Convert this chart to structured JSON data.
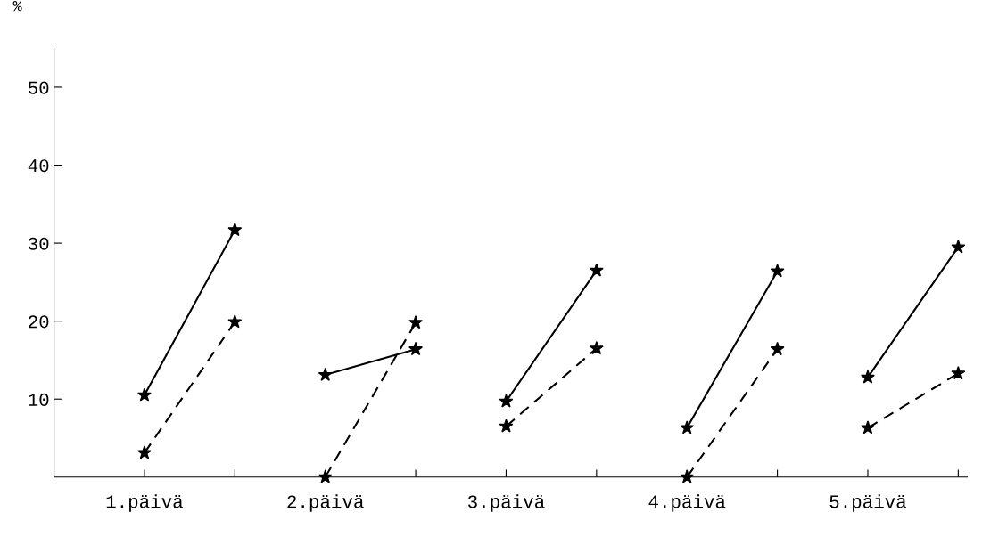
{
  "chart_data": {
    "type": "line",
    "ylabel": "%",
    "categories": [
      "1.päivä",
      null,
      "2.päivä",
      null,
      "3.päivä",
      null,
      "4.päivä",
      null,
      "5.päivä",
      null
    ],
    "series": [
      {
        "color": "#000000",
        "line_style": "solid",
        "values": [
          10.5,
          31.7,
          null,
          null,
          null,
          null,
          null,
          null,
          null,
          null
        ]
      },
      {
        "color": "#000000",
        "line_style": "dashed",
        "values": [
          3.1,
          19.9,
          null,
          null,
          null,
          null,
          null,
          null,
          null,
          null
        ]
      },
      {
        "color": "#000000",
        "line_style": "solid",
        "values": [
          null,
          null,
          13.1,
          16.4,
          null,
          null,
          null,
          null,
          null,
          null
        ]
      },
      {
        "color": "#000000",
        "line_style": "dashed",
        "values": [
          null,
          null,
          0,
          19.8,
          null,
          null,
          null,
          null,
          null,
          null
        ]
      },
      {
        "color": "#000000",
        "line_style": "solid",
        "values": [
          null,
          null,
          null,
          null,
          9.7,
          26.5,
          null,
          null,
          null,
          null
        ]
      },
      {
        "color": "#000000",
        "line_style": "dashed",
        "values": [
          null,
          null,
          null,
          null,
          6.5,
          16.5,
          null,
          null,
          null,
          null
        ]
      },
      {
        "color": "#000000",
        "line_style": "solid",
        "values": [
          null,
          null,
          null,
          null,
          null,
          null,
          6.3,
          26.4,
          null,
          null
        ]
      },
      {
        "color": "#000000",
        "line_style": "dashed",
        "values": [
          null,
          null,
          null,
          null,
          null,
          null,
          0,
          16.4,
          null,
          null
        ]
      },
      {
        "color": "#000000",
        "line_style": "solid",
        "values": [
          null,
          null,
          null,
          null,
          null,
          null,
          null,
          null,
          12.8,
          29.5
        ]
      },
      {
        "color": "#000000",
        "line_style": "dashed",
        "values": [
          null,
          null,
          null,
          null,
          null,
          null,
          null,
          null,
          6.3,
          13.3
        ]
      }
    ],
    "ylim": [
      0,
      55
    ],
    "yticks": [
      10,
      20,
      30,
      40,
      50
    ],
    "grid": false,
    "legend": false,
    "marker": "star"
  }
}
